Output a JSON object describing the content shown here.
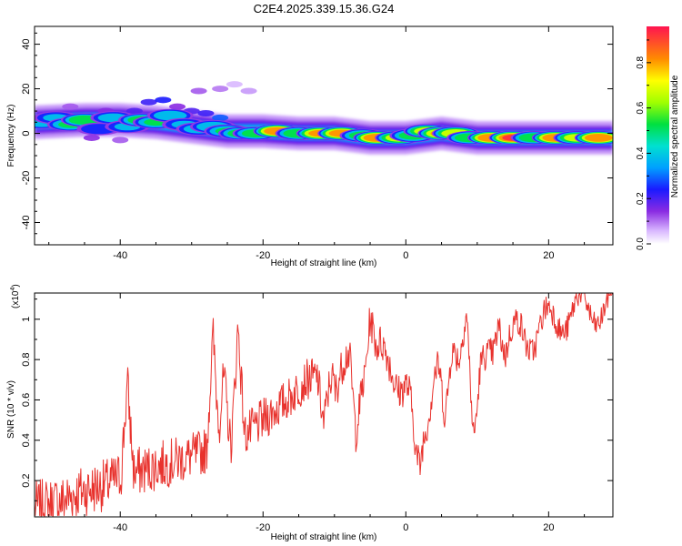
{
  "title": "C2E4.2025.339.15.36.G24",
  "chart_data": [
    {
      "type": "heatmap",
      "xlabel": "Height of straight line (km)",
      "ylabel": "Frequency (Hz)",
      "xlim": [
        -52,
        29
      ],
      "ylim": [
        -50,
        48
      ],
      "xticks": [
        -40,
        -20,
        0,
        20
      ],
      "yticks": [
        -40,
        -20,
        0,
        20,
        40
      ],
      "xtick_labels": [
        "-40",
        "-20",
        "0",
        "20"
      ],
      "ytick_labels": [
        "-40",
        "-20",
        "0",
        "20",
        "40"
      ],
      "colorbar": {
        "label": "Normalized spectral amplitude",
        "range": [
          0,
          0.96
        ],
        "ticks": [
          0.0,
          0.2,
          0.4,
          0.6,
          0.8
        ],
        "tick_labels": [
          "0.0",
          "0.2",
          "0.4",
          "0.6",
          "0.8"
        ]
      },
      "ridge_centerline": {
        "x": [
          -52,
          -45,
          -40,
          -35,
          -30,
          -25,
          -20,
          -15,
          -10,
          -5,
          0,
          5,
          10,
          15,
          20,
          25,
          29
        ],
        "y": [
          5,
          6,
          6,
          5,
          3,
          1,
          1,
          0,
          0,
          -2,
          -2,
          0,
          -2,
          -2,
          -2,
          -2,
          -2
        ]
      },
      "blobs": [
        {
          "x": -51,
          "y": 5,
          "a": 0.45
        },
        {
          "x": -49,
          "y": 7,
          "a": 0.35
        },
        {
          "x": -47,
          "y": 4,
          "a": 0.5
        },
        {
          "x": -45,
          "y": 6,
          "a": 0.62
        },
        {
          "x": -43,
          "y": 2,
          "a": 0.3
        },
        {
          "x": -41,
          "y": 7,
          "a": 0.4
        },
        {
          "x": -39,
          "y": 3,
          "a": 0.35
        },
        {
          "x": -37,
          "y": 6,
          "a": 0.55
        },
        {
          "x": -35,
          "y": 5,
          "a": 0.5
        },
        {
          "x": -33,
          "y": 8,
          "a": 0.45
        },
        {
          "x": -31,
          "y": 4,
          "a": 0.35
        },
        {
          "x": -29,
          "y": 2,
          "a": 0.4
        },
        {
          "x": -27,
          "y": 3,
          "a": 0.45
        },
        {
          "x": -25,
          "y": 1,
          "a": 0.5
        },
        {
          "x": -23,
          "y": 0,
          "a": 0.55
        },
        {
          "x": -21,
          "y": 0,
          "a": 0.55
        },
        {
          "x": -18,
          "y": 1,
          "a": 0.88
        },
        {
          "x": -15,
          "y": 0,
          "a": 0.6
        },
        {
          "x": -12,
          "y": 0,
          "a": 0.82
        },
        {
          "x": -9,
          "y": 0,
          "a": 0.85
        },
        {
          "x": -6,
          "y": -1,
          "a": 0.55
        },
        {
          "x": -4,
          "y": -2,
          "a": 0.9
        },
        {
          "x": -1,
          "y": -2,
          "a": 0.7
        },
        {
          "x": 1,
          "y": -1,
          "a": 0.55
        },
        {
          "x": 3,
          "y": 1,
          "a": 0.7
        },
        {
          "x": 5,
          "y": 0,
          "a": 0.8
        },
        {
          "x": 7,
          "y": 0,
          "a": 0.75
        },
        {
          "x": 9,
          "y": -2,
          "a": 0.6
        },
        {
          "x": 12,
          "y": -2,
          "a": 0.9
        },
        {
          "x": 15,
          "y": -2,
          "a": 0.92
        },
        {
          "x": 18,
          "y": -2,
          "a": 0.6
        },
        {
          "x": 21,
          "y": -2,
          "a": 0.88
        },
        {
          "x": 24,
          "y": -2,
          "a": 0.7
        },
        {
          "x": 27,
          "y": -2,
          "a": 0.9
        }
      ],
      "scatter": [
        {
          "x": -47,
          "y": 12,
          "a": 0.12
        },
        {
          "x": -42,
          "y": 10,
          "a": 0.15
        },
        {
          "x": -38,
          "y": 10,
          "a": 0.2
        },
        {
          "x": -36,
          "y": 14,
          "a": 0.22
        },
        {
          "x": -34,
          "y": 15,
          "a": 0.25
        },
        {
          "x": -30,
          "y": 10,
          "a": 0.2
        },
        {
          "x": -29,
          "y": 19,
          "a": 0.12
        },
        {
          "x": -26,
          "y": 20,
          "a": 0.1
        },
        {
          "x": -22,
          "y": 19,
          "a": 0.08
        },
        {
          "x": -24,
          "y": 22,
          "a": 0.06
        },
        {
          "x": -32,
          "y": 12,
          "a": 0.15
        },
        {
          "x": -44,
          "y": -2,
          "a": 0.15
        },
        {
          "x": -40,
          "y": -3,
          "a": 0.12
        },
        {
          "x": -28,
          "y": 9,
          "a": 0.22
        },
        {
          "x": -26,
          "y": 7,
          "a": 0.3
        }
      ]
    },
    {
      "type": "line",
      "xlabel": "Height of straight line (km)",
      "ylabel": "SNR (10 * v/v)",
      "y_multiplier": "(x10^4)",
      "xlim": [
        -52,
        29
      ],
      "ylim": [
        0.02,
        1.13
      ],
      "xticks": [
        -40,
        -20,
        0,
        20
      ],
      "yticks": [
        0.2,
        0.4,
        0.6,
        0.8,
        1.0
      ],
      "xtick_labels": [
        "-40",
        "-20",
        "0",
        "20"
      ],
      "ytick_labels": [
        "0.2",
        "0.4",
        "0.6",
        "0.8",
        "1"
      ],
      "series_color": "#e8322d",
      "series": [
        {
          "name": "SNR",
          "x": [
            -52,
            -50,
            -48,
            -46,
            -44,
            -42,
            -40,
            -38,
            -36,
            -34,
            -32,
            -30,
            -28,
            -26,
            -24,
            -22,
            -20,
            -18,
            -16,
            -14,
            -12,
            -10,
            -8,
            -6,
            -4,
            -2,
            0,
            2,
            4,
            6,
            8,
            10,
            12,
            14,
            16,
            18,
            20,
            22,
            24,
            26,
            28,
            29
          ],
          "y": [
            0.06,
            0.08,
            0.1,
            0.14,
            0.16,
            0.18,
            0.22,
            0.24,
            0.26,
            0.28,
            0.3,
            0.32,
            0.35,
            0.38,
            0.4,
            0.44,
            0.5,
            0.56,
            0.62,
            0.7,
            0.72,
            0.7,
            0.74,
            0.76,
            0.8,
            0.78,
            0.68,
            0.3,
            0.8,
            0.75,
            0.9,
            0.62,
            0.88,
            0.82,
            0.95,
            0.92,
            0.98,
            1.02,
            1.04,
            1.05,
            1.07,
            1.06
          ]
        }
      ],
      "spikes": [
        {
          "x": -39,
          "y": 0.68
        },
        {
          "x": -27,
          "y": 0.92
        },
        {
          "x": -25.5,
          "y": 0.72
        },
        {
          "x": -23.5,
          "y": 0.97
        },
        {
          "x": -5,
          "y": 1.05
        },
        {
          "x": 8.5,
          "y": 1.11
        },
        {
          "x": 13,
          "y": 1.06
        },
        {
          "x": 1.5,
          "y": 0.24
        },
        {
          "x": 5.5,
          "y": 0.42
        },
        {
          "x": 9.5,
          "y": 0.39
        },
        {
          "x": -11.5,
          "y": 0.48
        },
        {
          "x": -7,
          "y": 0.43
        }
      ],
      "noise": {
        "seed": 7,
        "amp_low": 0.14,
        "amp_high": 0.06
      }
    }
  ]
}
